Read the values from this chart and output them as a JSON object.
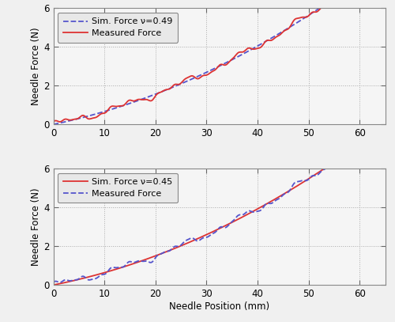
{
  "xlim": [
    0,
    65
  ],
  "ylim": [
    0,
    6
  ],
  "xticks": [
    0,
    10,
    20,
    30,
    40,
    50,
    60
  ],
  "yticks": [
    0,
    2,
    4,
    6
  ],
  "xlabel": "Needle Position (mm)",
  "ylabel": "Needle Force (N)",
  "top_legend": [
    {
      "label": "Sim. Force ν=0.49",
      "color": "#5555cc",
      "linestyle": "--"
    },
    {
      "label": "Measured Force",
      "color": "#dd3333",
      "linestyle": "-"
    }
  ],
  "bottom_legend": [
    {
      "label": "Sim. Force ν=0.45",
      "color": "#dd3333",
      "linestyle": "-"
    },
    {
      "label": "Measured Force",
      "color": "#5555cc",
      "linestyle": "--"
    }
  ],
  "ax_facecolor": "#f5f5f5",
  "fig_facecolor": "#f0f0f0",
  "grid_color": "#aaaaaa",
  "grid_style": ":",
  "legend_facecolor": "#e8e8e8"
}
